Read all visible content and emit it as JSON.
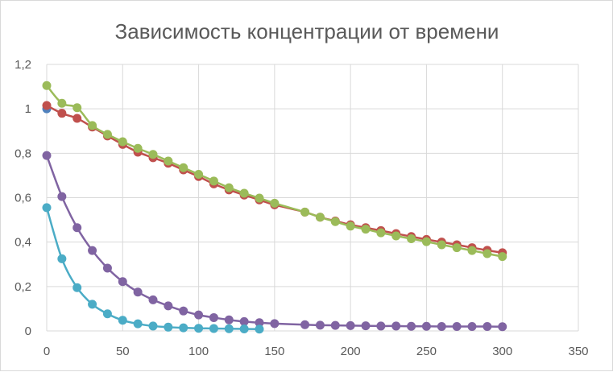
{
  "chart_data": {
    "type": "scatter",
    "title": "Зависимость концентрации от времени",
    "xlabel": "",
    "ylabel": "",
    "xlim": [
      0,
      350
    ],
    "ylim": [
      0,
      1.2
    ],
    "x_ticks": [
      "0",
      "50",
      "100",
      "150",
      "200",
      "250",
      "300",
      "350"
    ],
    "y_ticks": [
      "0",
      "0,2",
      "0,4",
      "0,6",
      "0,8",
      "1",
      "1,2"
    ],
    "grid": true,
    "legend": "none",
    "series": [
      {
        "color": "#4f81bd",
        "x": [
          0
        ],
        "y": [
          1.0
        ]
      },
      {
        "color": "#c0504d",
        "x": [
          0,
          10,
          20,
          30,
          40,
          50,
          60,
          70,
          80,
          90,
          100,
          110,
          120,
          130,
          140,
          150,
          170,
          180,
          190,
          200,
          210,
          220,
          230,
          240,
          250,
          260,
          270,
          280,
          290,
          300
        ],
        "y": [
          1.015,
          0.98,
          0.957,
          0.918,
          0.878,
          0.84,
          0.805,
          0.78,
          0.755,
          0.725,
          0.695,
          0.662,
          0.635,
          0.612,
          0.59,
          0.568,
          0.535,
          0.512,
          0.495,
          0.478,
          0.465,
          0.452,
          0.438,
          0.425,
          0.412,
          0.4,
          0.388,
          0.375,
          0.363,
          0.352
        ]
      },
      {
        "color": "#9bbb59",
        "x": [
          0,
          10,
          20,
          30,
          40,
          50,
          60,
          70,
          80,
          90,
          100,
          110,
          120,
          130,
          140,
          150,
          170,
          180,
          190,
          200,
          210,
          220,
          230,
          240,
          250,
          260,
          270,
          280,
          290,
          300
        ],
        "y": [
          1.105,
          1.025,
          1.005,
          0.925,
          0.885,
          0.852,
          0.822,
          0.795,
          0.765,
          0.735,
          0.705,
          0.675,
          0.645,
          0.62,
          0.598,
          0.575,
          0.535,
          0.512,
          0.492,
          0.472,
          0.458,
          0.442,
          0.428,
          0.415,
          0.402,
          0.388,
          0.375,
          0.362,
          0.348,
          0.335
        ]
      },
      {
        "color": "#8064a2",
        "x": [
          0,
          10,
          20,
          30,
          40,
          50,
          60,
          70,
          80,
          90,
          100,
          110,
          120,
          130,
          140,
          150,
          170,
          180,
          190,
          200,
          210,
          220,
          230,
          240,
          250,
          260,
          270,
          280,
          290,
          300
        ],
        "y": [
          0.79,
          0.605,
          0.465,
          0.362,
          0.283,
          0.222,
          0.175,
          0.14,
          0.113,
          0.09,
          0.072,
          0.06,
          0.05,
          0.042,
          0.037,
          0.033,
          0.028,
          0.026,
          0.025,
          0.024,
          0.023,
          0.022,
          0.022,
          0.021,
          0.021,
          0.02,
          0.02,
          0.02,
          0.02,
          0.019
        ]
      },
      {
        "color": "#4bacc6",
        "x": [
          0,
          10,
          20,
          30,
          40,
          50,
          60,
          70,
          80,
          90,
          100,
          110,
          120,
          130,
          140
        ],
        "y": [
          0.555,
          0.325,
          0.195,
          0.12,
          0.077,
          0.048,
          0.032,
          0.022,
          0.017,
          0.014,
          0.012,
          0.011,
          0.01,
          0.009,
          0.008
        ]
      }
    ]
  }
}
